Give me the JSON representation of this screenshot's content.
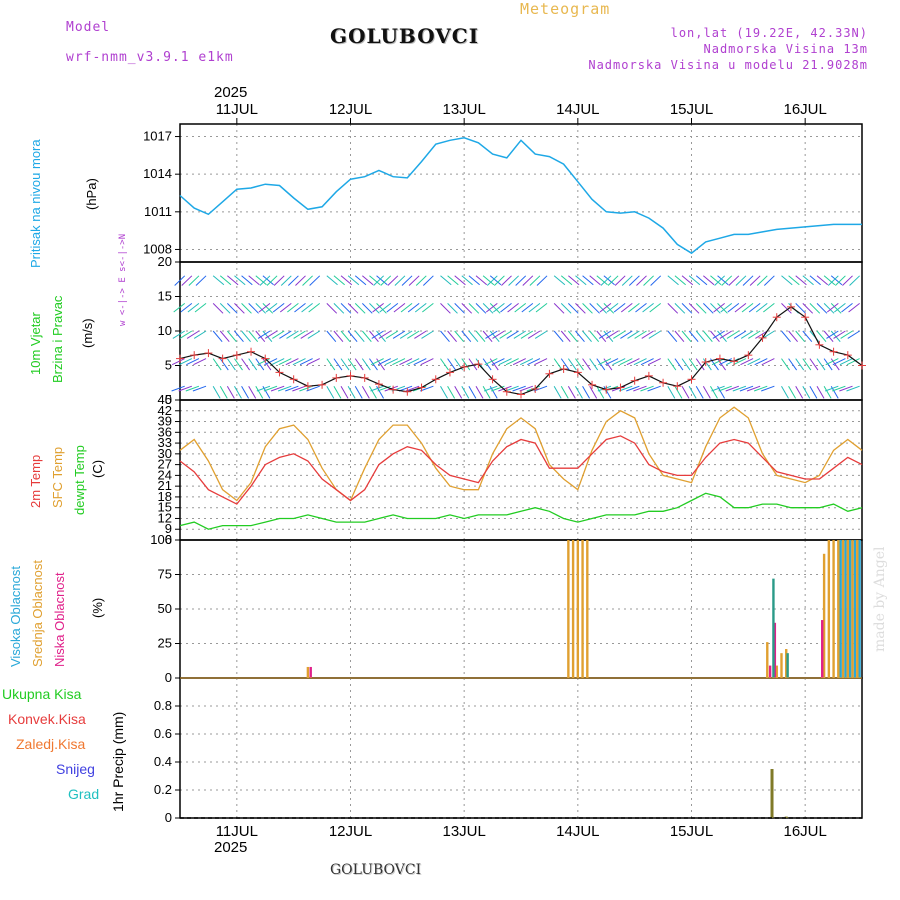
{
  "header": {
    "model_label": "Model",
    "model_name": "wrf-nmm_v3.9.1 e1km",
    "title": "GOLUBOVCI",
    "meteogram": "Meteogram",
    "lonlat": "lon,lat (19.22E, 42.33N)",
    "altitude": "Nadmorska Visina 13m",
    "model_altitude": "Nadmorska Visina u modelu 21.9028m",
    "year_top": "2025",
    "year_bottom": "2025",
    "footer_title": "GOLUBOVCI",
    "watermark": "made by Angel"
  },
  "colors": {
    "pressure": "#1ea8e6",
    "t2m": "#e63c3c",
    "sfc": "#e0a030",
    "dewpoint": "#22cc22",
    "cloud_high": "#2aa8d8",
    "cloud_mid": "#e0a030",
    "cloud_low": "#e0208a",
    "precip_bar": "#807a28"
  },
  "panel_labels": {
    "pressure": [
      "Pritisak na nivou mora",
      "(hPa)"
    ],
    "wind": [
      "10m Vjetar",
      "Brzina i Pravac",
      "(m/s)"
    ],
    "compass": "w <-|-> E  s<-|->N",
    "temp": [
      "2m Temp",
      "SFC Temp",
      "dewpt Temp",
      "(C)"
    ],
    "cloud": [
      "Visoka Oblacnost",
      "Srednja Oblacnost",
      "Niska Oblacnost",
      "(%)"
    ],
    "precip_axis": "1hr Precip (mm)",
    "precip_legend": [
      "Ukupna Kisa",
      "Konvek.Kisa",
      "Zaledj.Kisa",
      "Snijeg",
      "Grad"
    ]
  },
  "chart_data": [
    {
      "type": "line",
      "panel": "pressure",
      "ylabel": "(hPa)",
      "yticks": [
        1008,
        1011,
        1014,
        1017
      ],
      "ylim": [
        1007,
        1018
      ],
      "x_start": "2025-07-10T12:00",
      "x_end": "2025-07-16T12:00",
      "date_ticks": [
        "11JUL",
        "12JUL",
        "13JUL",
        "14JUL",
        "15JUL",
        "16JUL"
      ],
      "series": [
        {
          "t_hours": [
            0,
            3,
            6,
            9,
            12,
            15,
            18,
            21,
            24,
            27,
            30,
            33,
            36,
            39,
            42,
            45,
            48,
            51,
            54,
            57,
            60,
            63,
            66,
            69,
            72,
            75,
            78,
            81,
            84,
            87,
            90,
            93,
            96,
            99,
            102,
            105,
            108,
            111,
            114,
            117,
            120,
            123,
            126,
            129,
            132,
            135,
            138,
            141,
            144
          ],
          "values": [
            1012.3,
            1011.3,
            1010.8,
            1011.8,
            1012.8,
            1012.9,
            1013.2,
            1013.1,
            1012.1,
            1011.2,
            1011.4,
            1012.6,
            1013.6,
            1013.8,
            1014.3,
            1013.8,
            1013.7,
            1015.0,
            1016.4,
            1016.7,
            1016.9,
            1016.5,
            1015.6,
            1015.3,
            1016.7,
            1015.6,
            1015.4,
            1014.8,
            1013.4,
            1012.0,
            1011.0,
            1010.9,
            1011.0,
            1010.5,
            1009.7,
            1008.4,
            1007.7,
            1008.6,
            1008.9,
            1009.2,
            1009.2,
            1009.4,
            1009.6,
            1009.7,
            1009.8,
            1009.9,
            1010.0,
            1010.0,
            1010.0
          ]
        }
      ]
    },
    {
      "type": "line",
      "panel": "wind",
      "ylabel": "(m/s)",
      "yticks": [
        0,
        5,
        10,
        15,
        20
      ],
      "ylim": [
        0,
        20
      ],
      "series": [
        {
          "name": "10m wind speed",
          "t_hours": [
            0,
            3,
            6,
            9,
            12,
            15,
            18,
            21,
            24,
            27,
            30,
            33,
            36,
            39,
            42,
            45,
            48,
            51,
            54,
            57,
            60,
            63,
            66,
            69,
            72,
            75,
            78,
            81,
            84,
            87,
            90,
            93,
            96,
            99,
            102,
            105,
            108,
            111,
            114,
            117,
            120,
            123,
            126,
            129,
            132,
            135,
            138,
            141,
            144
          ],
          "values": [
            6,
            6.5,
            6.8,
            6,
            6.5,
            7,
            6,
            4,
            3,
            2,
            2.2,
            3.2,
            3.5,
            3.2,
            2.3,
            1.5,
            1.2,
            1.8,
            3,
            4,
            4.8,
            5.2,
            3,
            1.2,
            0.8,
            1.6,
            3.8,
            4.5,
            4,
            2.2,
            1.5,
            1.8,
            2.8,
            3.5,
            2.5,
            2,
            3,
            5.5,
            6,
            5.6,
            6.5,
            9,
            12,
            13.5,
            12,
            8,
            7,
            6.5,
            5
          ]
        }
      ]
    },
    {
      "type": "line",
      "panel": "temperature",
      "ylabel": "(C)",
      "yticks": [
        6,
        9,
        12,
        15,
        18,
        21,
        24,
        27,
        30,
        33,
        36,
        39,
        42,
        45
      ],
      "ylim": [
        6,
        45
      ],
      "series": [
        {
          "name": "2m Temp",
          "t_hours": [
            0,
            3,
            6,
            9,
            12,
            15,
            18,
            21,
            24,
            27,
            30,
            33,
            36,
            39,
            42,
            45,
            48,
            51,
            54,
            57,
            60,
            63,
            66,
            69,
            72,
            75,
            78,
            81,
            84,
            87,
            90,
            93,
            96,
            99,
            102,
            105,
            108,
            111,
            114,
            117,
            120,
            123,
            126,
            129,
            132,
            135,
            138,
            141,
            144
          ],
          "values": [
            28,
            25,
            20,
            18,
            16,
            21,
            27,
            29,
            30,
            28,
            23,
            20,
            17,
            20,
            27,
            30,
            32,
            31,
            27,
            24,
            23,
            22,
            28,
            32,
            34,
            33,
            26,
            26,
            26,
            30,
            34,
            35,
            33,
            27,
            25,
            24,
            24,
            29,
            33,
            34,
            33,
            29,
            25,
            24,
            23,
            23,
            26,
            29,
            27
          ]
        },
        {
          "name": "SFC Temp",
          "t_hours": [
            0,
            3,
            6,
            9,
            12,
            15,
            18,
            21,
            24,
            27,
            30,
            33,
            36,
            39,
            42,
            45,
            48,
            51,
            54,
            57,
            60,
            63,
            66,
            69,
            72,
            75,
            78,
            81,
            84,
            87,
            90,
            93,
            96,
            99,
            102,
            105,
            108,
            111,
            114,
            117,
            120,
            123,
            126,
            129,
            132,
            135,
            138,
            141,
            144
          ],
          "values": [
            31,
            34,
            28,
            20,
            17,
            22,
            32,
            37,
            38,
            34,
            26,
            20,
            17,
            26,
            34,
            38,
            38,
            33,
            26,
            21,
            20,
            20,
            30,
            37,
            40,
            37,
            27,
            23,
            20,
            31,
            39,
            42,
            40,
            30,
            24,
            23,
            22,
            32,
            40,
            43,
            40,
            30,
            24,
            23,
            22,
            24,
            31,
            34,
            31
          ]
        },
        {
          "name": "dewpt Temp",
          "t_hours": [
            0,
            3,
            6,
            9,
            12,
            15,
            18,
            21,
            24,
            27,
            30,
            33,
            36,
            39,
            42,
            45,
            48,
            51,
            54,
            57,
            60,
            63,
            66,
            69,
            72,
            75,
            78,
            81,
            84,
            87,
            90,
            93,
            96,
            99,
            102,
            105,
            108,
            111,
            114,
            117,
            120,
            123,
            126,
            129,
            132,
            135,
            138,
            141,
            144
          ],
          "values": [
            10,
            11,
            9,
            10,
            10,
            10,
            11,
            12,
            12,
            13,
            12,
            11,
            11,
            11,
            12,
            13,
            12,
            12,
            12,
            13,
            12,
            13,
            13,
            13,
            14,
            15,
            14,
            12,
            11,
            12,
            13,
            13,
            13,
            14,
            14,
            15,
            17,
            19,
            18,
            15,
            15,
            16,
            16,
            15,
            15,
            15,
            16,
            14,
            15
          ]
        }
      ]
    },
    {
      "type": "bar",
      "panel": "cloud",
      "ylabel": "(%)",
      "yticks": [
        0,
        25,
        50,
        75,
        100
      ],
      "ylim": [
        0,
        100
      ],
      "series": [
        {
          "name": "Visoka Oblacnost",
          "t_hours": [
            139.5,
            140.5,
            141.5,
            142.5,
            143.5
          ],
          "values": [
            100,
            100,
            100,
            100,
            100
          ]
        },
        {
          "name": "Srednja Oblacnost",
          "t_hours": [
            27,
            82,
            83,
            84,
            85,
            86,
            124,
            126,
            127,
            128,
            136,
            137,
            138,
            139,
            140,
            141,
            142,
            143
          ],
          "values": [
            8,
            100,
            100,
            100,
            100,
            100,
            26,
            9,
            18,
            21,
            90,
            100,
            100,
            100,
            100,
            100,
            100,
            100
          ]
        },
        {
          "name": "Niska Oblacnost",
          "t_hours": [
            27.6,
            124.6,
            125.6,
            135.6
          ],
          "values": [
            8,
            9,
            40,
            42
          ]
        },
        {
          "name": "Visoka Oblacnost",
          "t_hours": [
            125.3,
            128.3
          ],
          "values": [
            72,
            18
          ]
        }
      ]
    },
    {
      "type": "bar",
      "panel": "precip",
      "ylabel": "1hr Precip (mm)",
      "yticks": [
        0,
        0.2,
        0.4,
        0.6,
        0.8
      ],
      "ylim": [
        0,
        1.0
      ],
      "series": [
        {
          "name": "Ukupna Kisa",
          "t_hours": [
            125,
            128
          ],
          "values": [
            0.35,
            0.01
          ]
        }
      ]
    }
  ]
}
